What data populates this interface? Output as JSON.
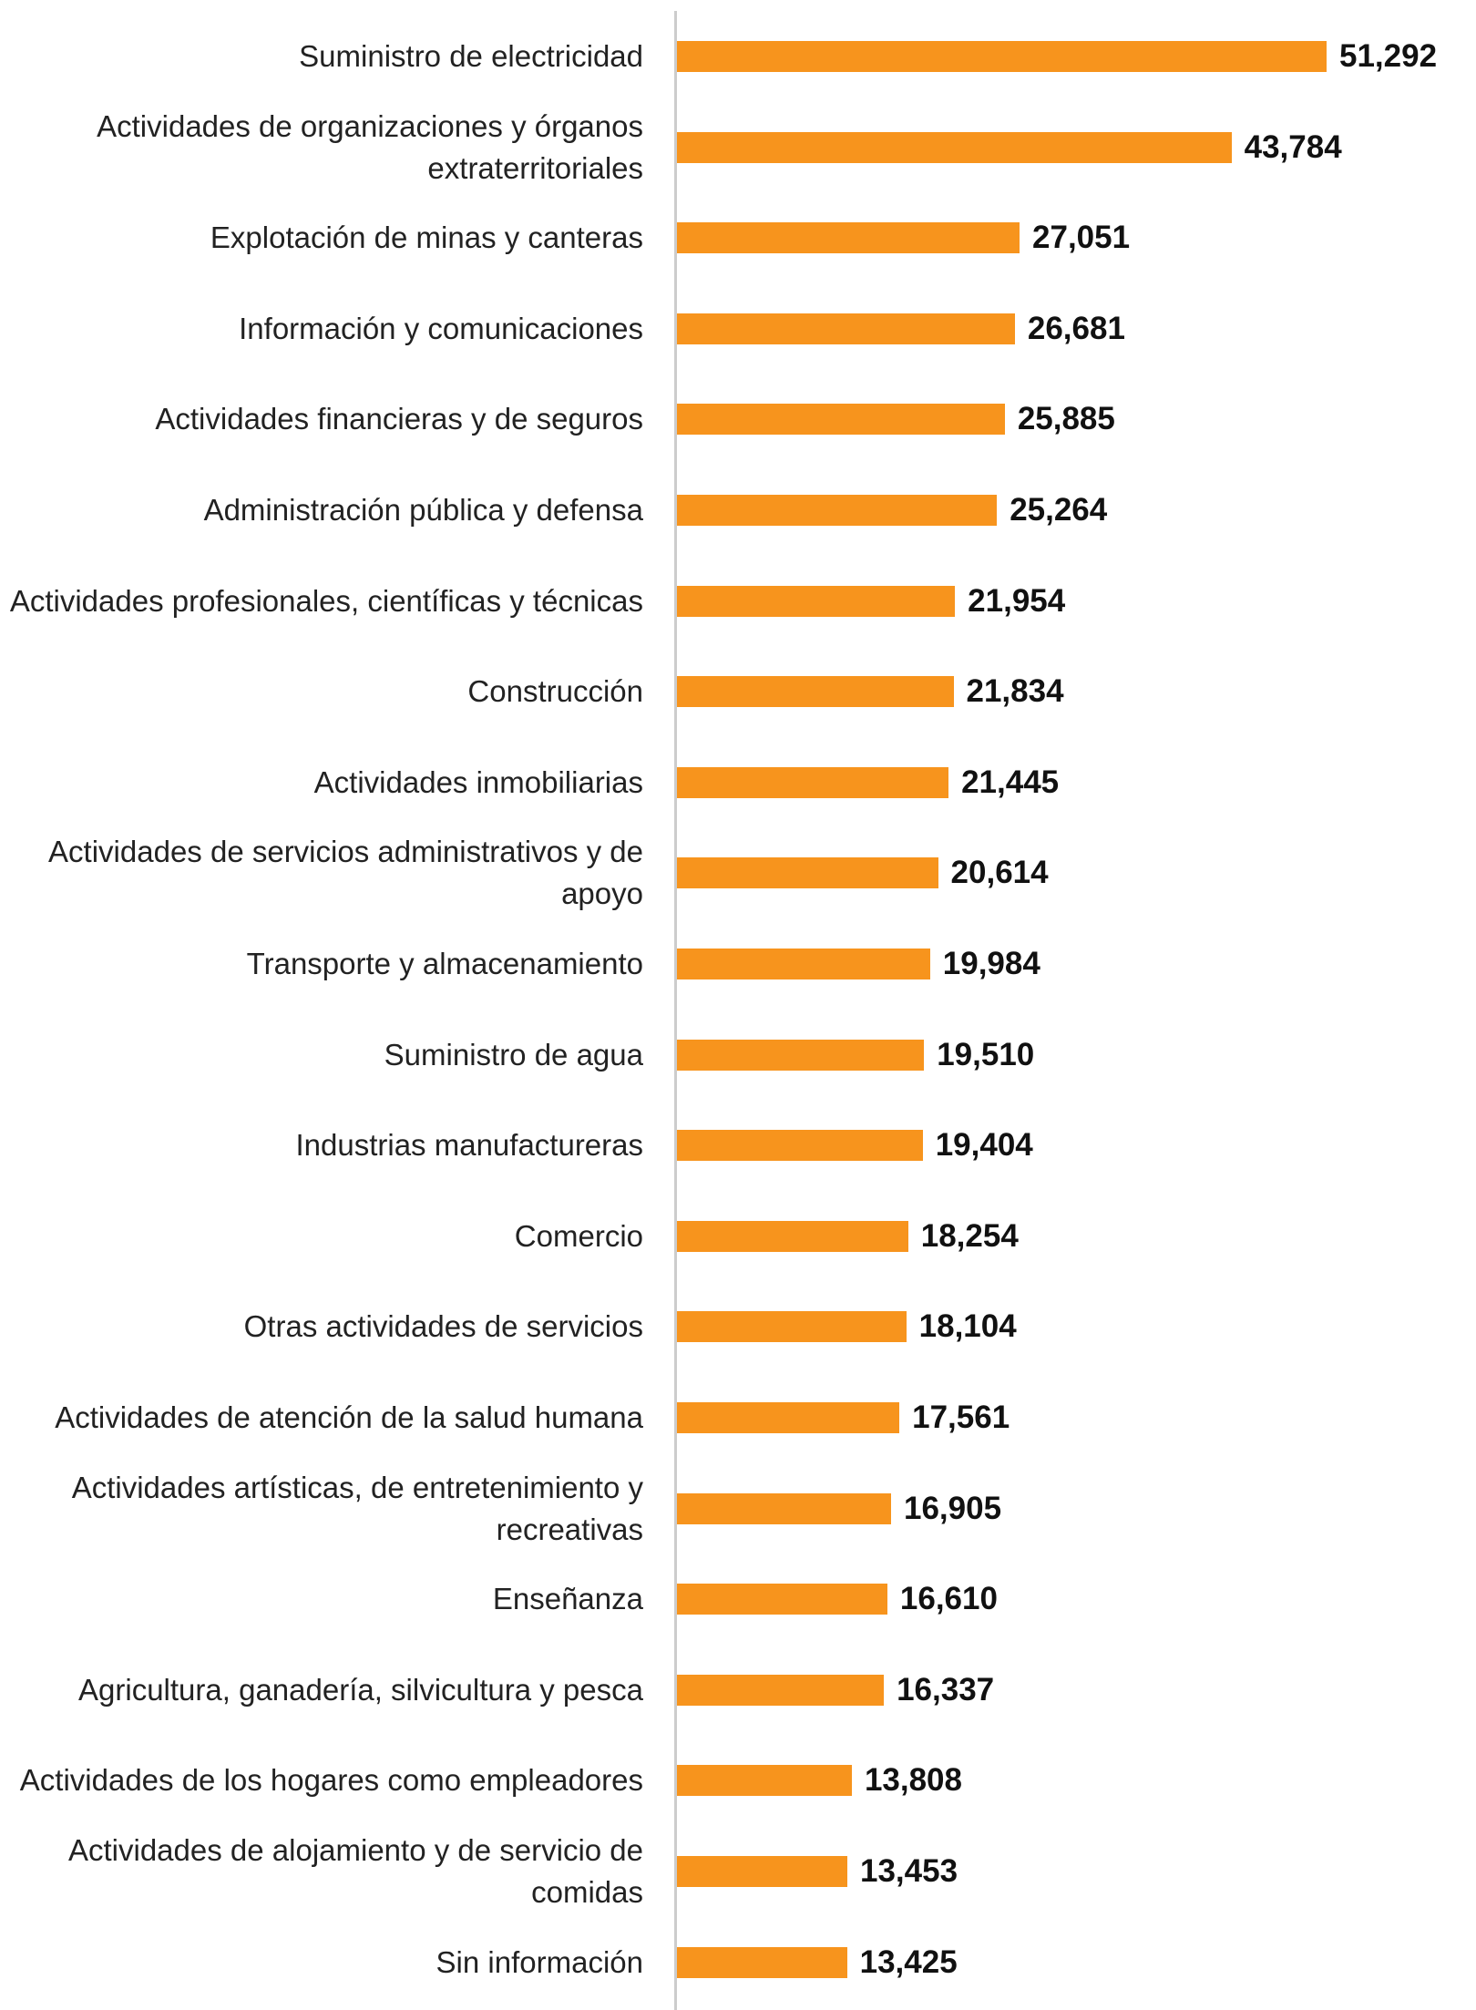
{
  "chart_data": {
    "type": "bar",
    "orientation": "horizontal",
    "color": "#f7941d",
    "categories": [
      "Suministro de electricidad",
      "Actividades de organizaciones y órganos extraterritoriales",
      "Explotación de minas y canteras",
      "Información y comunicaciones",
      "Actividades financieras y de seguros",
      "Administración pública y defensa",
      "Actividades profesionales, científicas y técnicas",
      "Construcción",
      "Actividades inmobiliarias",
      "Actividades de servicios administrativos y de apoyo",
      "Transporte y almacenamiento",
      "Suministro de agua",
      "Industrias manufactureras",
      "Comercio",
      "Otras actividades de servicios",
      "Actividades de atención de la salud humana",
      "Actividades artísticas, de entretenimiento y recreativas",
      "Enseñanza",
      "Agricultura, ganadería, silvicultura y pesca",
      "Actividades de los hogares como empleadores",
      "Actividades de alojamiento y de servicio de comidas",
      "Sin información"
    ],
    "values": [
      51292,
      43784,
      27051,
      26681,
      25885,
      25264,
      21954,
      21834,
      21445,
      20614,
      19984,
      19510,
      19404,
      18254,
      18104,
      17561,
      16905,
      16610,
      16337,
      13808,
      13453,
      13425
    ],
    "value_labels": [
      "51,292",
      "43,784",
      "27,051",
      "26,681",
      "25,885",
      "25,264",
      "21,954",
      "21,834",
      "21,445",
      "20,614",
      "19,984",
      "19,510",
      "19,404",
      "18,254",
      "18,104",
      "17,561",
      "16,905",
      "16,610",
      "16,337",
      "13,808",
      "13,453",
      "13,425"
    ]
  }
}
